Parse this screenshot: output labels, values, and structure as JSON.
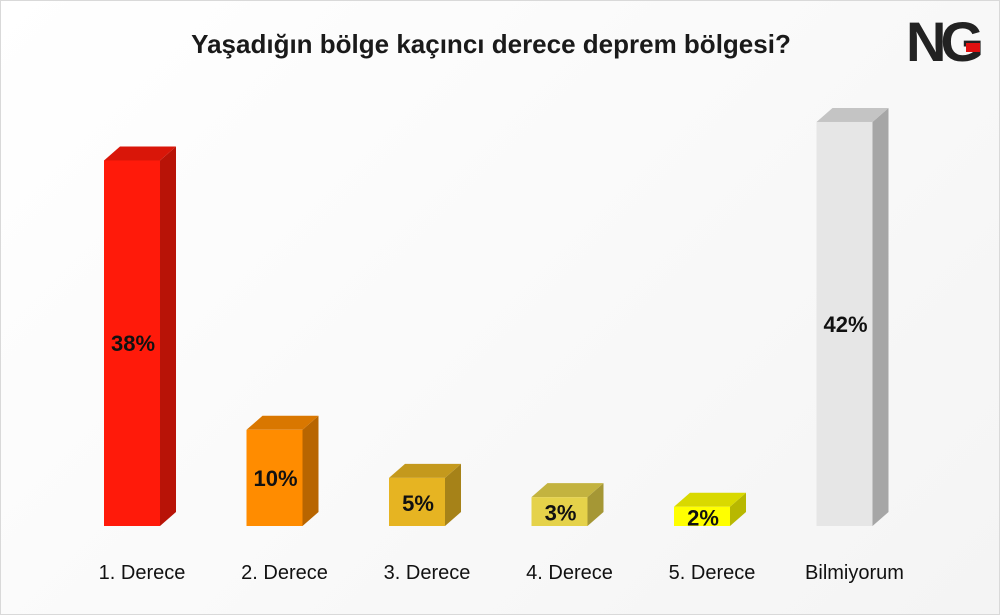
{
  "logo_text": "NG",
  "chart_data": {
    "type": "bar",
    "title": "Yaşadığın bölge kaçıncı derece deprem bölgesi?",
    "xlabel": "",
    "ylabel": "",
    "ylim": [
      0,
      42
    ],
    "grid": false,
    "legend": "none",
    "categories": [
      "1. Derece",
      "2. Derece",
      "3. Derece",
      "4. Derece",
      "5. Derece",
      "Bilmiyorum"
    ],
    "values": [
      38,
      10,
      5,
      3,
      2,
      42
    ],
    "value_labels": [
      "38%",
      "10%",
      "5%",
      "3%",
      "2%",
      "42%"
    ],
    "colors": [
      "#ff1a0a",
      "#ff8c00",
      "#e6b422",
      "#e5d24a",
      "#ffff00",
      "#e6e6e6"
    ]
  }
}
